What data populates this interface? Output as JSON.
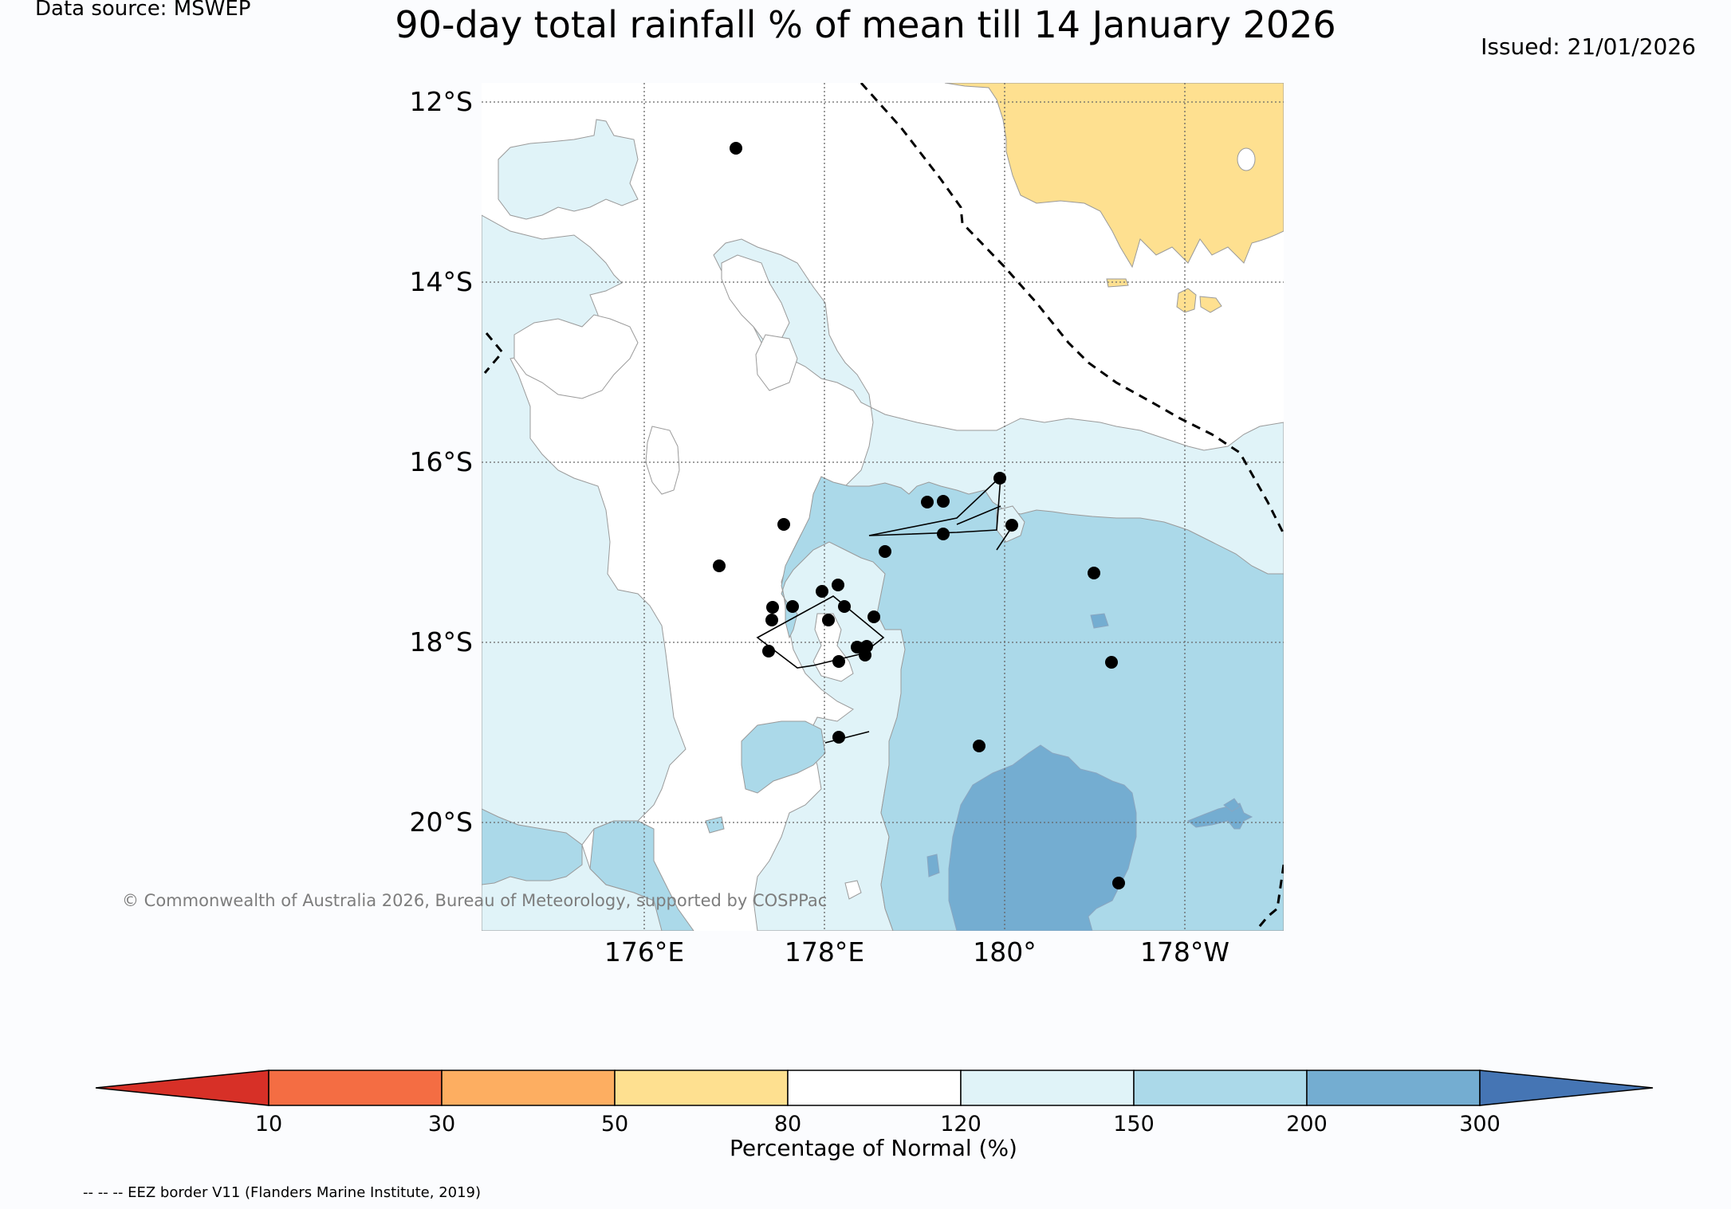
{
  "header": {
    "data_source": "Data source: MSWEP",
    "title": "90-day total rainfall % of mean till 14 January 2026",
    "issued": "Issued: 21/01/2026"
  },
  "map": {
    "lat_labels": [
      "12°S",
      "14°S",
      "16°S",
      "18°S",
      "20°S"
    ],
    "lon_labels": [
      "176°E",
      "178°E",
      "180°",
      "178°W"
    ],
    "copyright": "© Commonwealth of Australia 2026, Bureau of Meteorology, supported by COSPPac"
  },
  "colorbar": {
    "ticks": [
      "10",
      "30",
      "50",
      "80",
      "120",
      "150",
      "200",
      "300"
    ],
    "label": "Percentage of Normal (%)",
    "colors": {
      "below_10": "#d73027",
      "c10_30": "#f46d43",
      "c30_50": "#fdae61",
      "c50_80": "#fee090",
      "c80_120": "#ffffff",
      "c120_150": "#e0f3f8",
      "c150_200": "#abd9e9",
      "c200_300": "#74add1",
      "above_300": "#4575b4"
    }
  },
  "legend": {
    "eez_note": "-- -- -- EEZ border V11 (Flanders Marine Institute, 2019)"
  }
}
